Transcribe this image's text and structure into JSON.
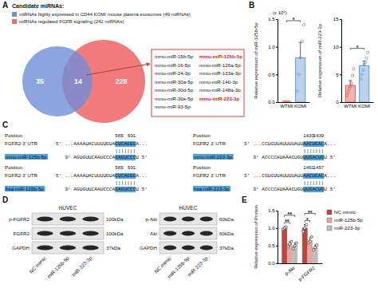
{
  "panel_labels": [
    "A",
    "B",
    "C",
    "D",
    "E"
  ],
  "venn": {
    "title": "Candidate miRNAs:",
    "legend": [
      {
        "label": "miRNAs highly expressed in CD44 KOMI mouse plasma exosomes (49 miRNAs)",
        "color": "#6f8fd9"
      },
      {
        "label": "miRNAs regulated FGFR signaling (242 miRNAs)",
        "color": "#f06b6b"
      }
    ],
    "left_only": 35,
    "both": 14,
    "right_only": 228,
    "box_color": "#d9423a",
    "columns": [
      [
        {
          "label": "mmu-miR-15b-5p"
        },
        {
          "label": "mmu-miR-16-5p"
        },
        {
          "label": "mmu-miR-24-3p"
        },
        {
          "label": "mmu-miR-30a-5p"
        },
        {
          "label": "mmu-miR-30d-5p"
        },
        {
          "label": "mmu-miR-30e-5p"
        },
        {
          "label": "mmu-miR-93-5p"
        }
      ],
      [
        {
          "label": "mmu-miR-125b-5p",
          "color": "#e0201b"
        },
        {
          "label": "mmu-miR-126a-5p"
        },
        {
          "label": "mmu-miR-133a-3p"
        },
        {
          "label": "mmu-miR-140-3p"
        },
        {
          "label": "mmu-miR-148a-3p"
        },
        {
          "label": "mmu-miR-223-3p",
          "color": "#e0201b"
        }
      ]
    ]
  },
  "alignments": [
    {
      "position_label": "Position",
      "start": 585,
      "end": 591,
      "target_name": "FGFR2 3' UTR",
      "target_seq": [
        "5'  ...AAAAUACUUUUGUA",
        "CUCAGGG",
        "A..."
      ],
      "pairs": "|||||||",
      "mirna_name": "mmu-miR-125b-5p",
      "mirna_seq": [
        "3'  AGUGUUCAAUCCCA",
        "GAGUCCC",
        "U  5'"
      ],
      "color": "#4ea3df"
    },
    {
      "position_label": "Position",
      "start": 1433,
      "end": 1439,
      "target_name": "FGFR2 3' UTR",
      "target_seq": [
        "5'  ...CCUGUUAUUUUAUU",
        "AACUGAC",
        "A..."
      ],
      "pairs": "|||||||",
      "mirna_name": "mmu-miR-223-3p",
      "mirna_seq": [
        "3'  ACCCCAUAAACUGU",
        "UUGACUG",
        "U  5'"
      ],
      "color": "#4ea3df"
    },
    {
      "position_label": "Position",
      "start": 585,
      "end": 591,
      "target_name": "FGFR2 3' UTR",
      "target_seq": [
        "5'  ...AAAAUACUUUUGUA",
        "CUCAGGG",
        "A..."
      ],
      "pairs": "|||||||",
      "mirna_name": "hsa-miR-125b-5p",
      "mirna_seq": [
        "3'  AGUGUUCAAUCCCA",
        "GAGUCCC",
        "U  5'"
      ],
      "color": "#4ea3df"
    },
    {
      "position_label": "Position",
      "start": 1451,
      "end": 1457,
      "target_name": "FGFR2 3' UTR",
      "target_seq": [
        "5'  ...CGUGUUAUUUUAUU",
        "AACUGAC",
        "A..."
      ],
      "pairs": "|||||||",
      "mirna_name": "hsa-miR-223-3p",
      "mirna_seq": [
        "3'  ACCCCAUAAACUGU",
        "UUGACUG",
        "U  5'"
      ],
      "color": "#4ea3df"
    }
  ],
  "blots": [
    {
      "cell_line": "HUVEC",
      "rows": [
        {
          "label": "p-FGFR2",
          "size": "100kDa"
        },
        {
          "label": "FGFR2",
          "size": "100kDa"
        },
        {
          "label": "GAPDH",
          "size": "37kDa"
        }
      ],
      "lanes": [
        "NC mimic",
        "miR-125b-5p",
        "miR-223-3p"
      ]
    },
    {
      "cell_line": "HUVEC",
      "rows": [
        {
          "label": "p-Akt",
          "size": "60kDa"
        },
        {
          "label": "Akt",
          "size": "60kDa"
        },
        {
          "label": "GAPDH",
          "size": "37kDa"
        }
      ],
      "lanes": [
        "NC mimic",
        "miR-125b-5p",
        "miR-223-3p"
      ]
    }
  ],
  "chart_data": [
    {
      "type": "bar",
      "categories": [
        "WTMI",
        "KOMI"
      ],
      "values": [
        0.0,
        0.8
      ],
      "error": [
        0.0,
        0.28
      ],
      "points": [
        [
          0,
          0,
          0,
          0,
          0
        ],
        [
          0.2,
          0.5,
          0.8,
          1.1,
          1.4
        ]
      ],
      "colors": [
        "#e8574d",
        "#6b98d4"
      ],
      "y_label": "Relative expression of miR-125b-5p",
      "y_unit": "(x 10⁵)",
      "ylim": [
        0,
        1.5
      ],
      "yticks": [
        {
          "value": 0,
          "label": "0.0"
        },
        0.5,
        {
          "value": 1,
          "label": "1.0"
        },
        1.5
      ],
      "significance": [
        {
          "label": "*",
          "categories": [
            0,
            1
          ]
        }
      ]
    },
    {
      "type": "bar",
      "categories": [
        "WTMI",
        "KOMI"
      ],
      "values": [
        3.0,
        6.6
      ],
      "error": [
        0.9,
        0.8
      ],
      "points": [
        [
          1.2,
          1.8,
          2.4,
          2.9,
          3.4,
          4.8,
          6.0
        ],
        [
          4.2,
          5.0,
          5.8,
          6.8,
          7.2,
          8.0,
          9.0
        ]
      ],
      "colors": [
        "#e8574d",
        "#6b98d4"
      ],
      "y_label": "Relative expression of miR-223-3p",
      "ylim": [
        0,
        15
      ],
      "yticks": [
        0,
        5,
        10,
        15
      ],
      "significance": [
        {
          "label": "*",
          "categories": [
            0,
            1
          ]
        }
      ]
    },
    {
      "type": "bar",
      "categories": [
        "p-Akt",
        "p-FGFR2"
      ],
      "series": [
        {
          "name": "NC mimic",
          "color": "#b8473d",
          "values": [
            1.0,
            1.0
          ],
          "error": [
            0.05,
            0.1
          ],
          "points": [
            [
              0.97,
              1.0,
              1.03
            ],
            [
              0.9,
              1.0,
              1.1
            ]
          ]
        },
        {
          "name": "miR-125b-5p",
          "color": "#e8a59c",
          "values": [
            0.55,
            0.65
          ],
          "error": [
            0.07,
            0.08
          ],
          "points": [
            [
              0.47,
              0.55,
              0.62
            ],
            [
              0.58,
              0.62,
              0.75
            ]
          ]
        },
        {
          "name": "miR-223-3p",
          "color": "#bdbdbd",
          "values": [
            0.5,
            0.45
          ],
          "error": [
            0.08,
            0.07
          ],
          "points": [
            [
              0.42,
              0.5,
              0.58
            ],
            [
              0.38,
              0.45,
              0.52
            ]
          ]
        }
      ],
      "y_label": "Relative expression of Protein",
      "ylim": [
        0,
        1.5
      ],
      "yticks": [
        {
          "value": 0,
          "label": "0.0"
        },
        0.5,
        {
          "value": 1,
          "label": "1.0"
        },
        1.5
      ],
      "legend": "top-right",
      "significance": [
        {
          "label": "**",
          "category": 0,
          "series": [
            0,
            1
          ]
        },
        {
          "label": "**",
          "category": 0,
          "series": [
            0,
            2
          ]
        },
        {
          "label": "*",
          "category": 1,
          "series": [
            0,
            1
          ]
        },
        {
          "label": "**",
          "category": 1,
          "series": [
            0,
            2
          ]
        }
      ]
    }
  ]
}
